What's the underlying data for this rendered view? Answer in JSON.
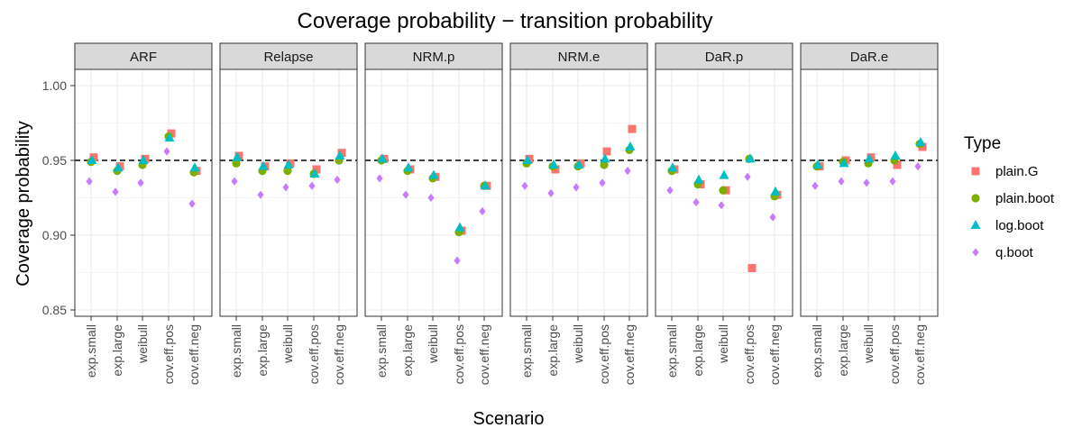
{
  "chart_data": {
    "type": "scatter",
    "title": "Coverage probability − transition probability",
    "xlabel": "Scenario",
    "ylabel": "Coverage probability",
    "ylim": [
      0.845,
      1.008
    ],
    "yticks": [
      "0.85",
      "0.90",
      "0.95",
      "1.00"
    ],
    "reference_line": 0.95,
    "grid": true,
    "legend_position": "right",
    "legend_title": "Type",
    "categories": [
      "exp.small",
      "exp.large",
      "weibull",
      "cov.eff.pos",
      "cov.eff.neg"
    ],
    "panels": [
      {
        "label": "ARF",
        "series": [
          {
            "name": "plain.G",
            "values": [
              0.952,
              0.946,
              0.951,
              0.968,
              0.943
            ]
          },
          {
            "name": "plain.boot",
            "values": [
              0.949,
              0.943,
              0.947,
              0.966,
              0.942
            ]
          },
          {
            "name": "log.boot",
            "values": [
              0.95,
              0.945,
              0.95,
              0.965,
              0.945
            ]
          },
          {
            "name": "q.boot",
            "values": [
              0.936,
              0.929,
              0.935,
              0.956,
              0.921
            ]
          }
        ]
      },
      {
        "label": "Relapse",
        "series": [
          {
            "name": "plain.G",
            "values": [
              0.953,
              0.946,
              0.948,
              0.944,
              0.955
            ]
          },
          {
            "name": "plain.boot",
            "values": [
              0.948,
              0.943,
              0.943,
              0.941,
              0.95
            ]
          },
          {
            "name": "log.boot",
            "values": [
              0.952,
              0.946,
              0.947,
              0.941,
              0.953
            ]
          },
          {
            "name": "q.boot",
            "values": [
              0.936,
              0.927,
              0.932,
              0.933,
              0.937
            ]
          }
        ]
      },
      {
        "label": "NRM.p",
        "series": [
          {
            "name": "plain.G",
            "values": [
              0.951,
              0.944,
              0.939,
              0.903,
              0.933
            ]
          },
          {
            "name": "plain.boot",
            "values": [
              0.95,
              0.943,
              0.938,
              0.902,
              0.933
            ]
          },
          {
            "name": "log.boot",
            "values": [
              0.951,
              0.945,
              0.94,
              0.905,
              0.933
            ]
          },
          {
            "name": "q.boot",
            "values": [
              0.938,
              0.927,
              0.925,
              0.883,
              0.916
            ]
          }
        ]
      },
      {
        "label": "NRM.e",
        "series": [
          {
            "name": "plain.G",
            "values": [
              0.951,
              0.944,
              0.948,
              0.956,
              0.971
            ]
          },
          {
            "name": "plain.boot",
            "values": [
              0.948,
              0.946,
              0.946,
              0.947,
              0.957
            ]
          },
          {
            "name": "log.boot",
            "values": [
              0.95,
              0.947,
              0.947,
              0.951,
              0.959
            ]
          },
          {
            "name": "q.boot",
            "values": [
              0.933,
              0.928,
              0.932,
              0.935,
              0.943
            ]
          }
        ]
      },
      {
        "label": "DaR.p",
        "series": [
          {
            "name": "plain.G",
            "values": [
              0.944,
              0.934,
              0.93,
              0.878,
              0.927
            ]
          },
          {
            "name": "plain.boot",
            "values": [
              0.943,
              0.934,
              0.93,
              0.951,
              0.926
            ]
          },
          {
            "name": "log.boot",
            "values": [
              0.945,
              0.937,
              0.94,
              0.951,
              0.929
            ]
          },
          {
            "name": "q.boot",
            "values": [
              0.93,
              0.922,
              0.92,
              0.939,
              0.912
            ]
          }
        ]
      },
      {
        "label": "DaR.e",
        "series": [
          {
            "name": "plain.G",
            "values": [
              0.946,
              0.95,
              0.952,
              0.947,
              0.959
            ]
          },
          {
            "name": "plain.boot",
            "values": [
              0.946,
              0.949,
              0.948,
              0.95,
              0.961
            ]
          },
          {
            "name": "log.boot",
            "values": [
              0.947,
              0.948,
              0.951,
              0.953,
              0.962
            ]
          },
          {
            "name": "q.boot",
            "values": [
              0.933,
              0.936,
              0.935,
              0.936,
              0.946
            ]
          }
        ]
      }
    ],
    "legend": [
      {
        "name": "plain.G",
        "color": "#F8766D",
        "shape": "square"
      },
      {
        "name": "plain.boot",
        "color": "#7CAE00",
        "shape": "circle"
      },
      {
        "name": "log.boot",
        "color": "#00BFC4",
        "shape": "triangle"
      },
      {
        "name": "q.boot",
        "color": "#C77CFF",
        "shape": "diamond"
      }
    ]
  }
}
